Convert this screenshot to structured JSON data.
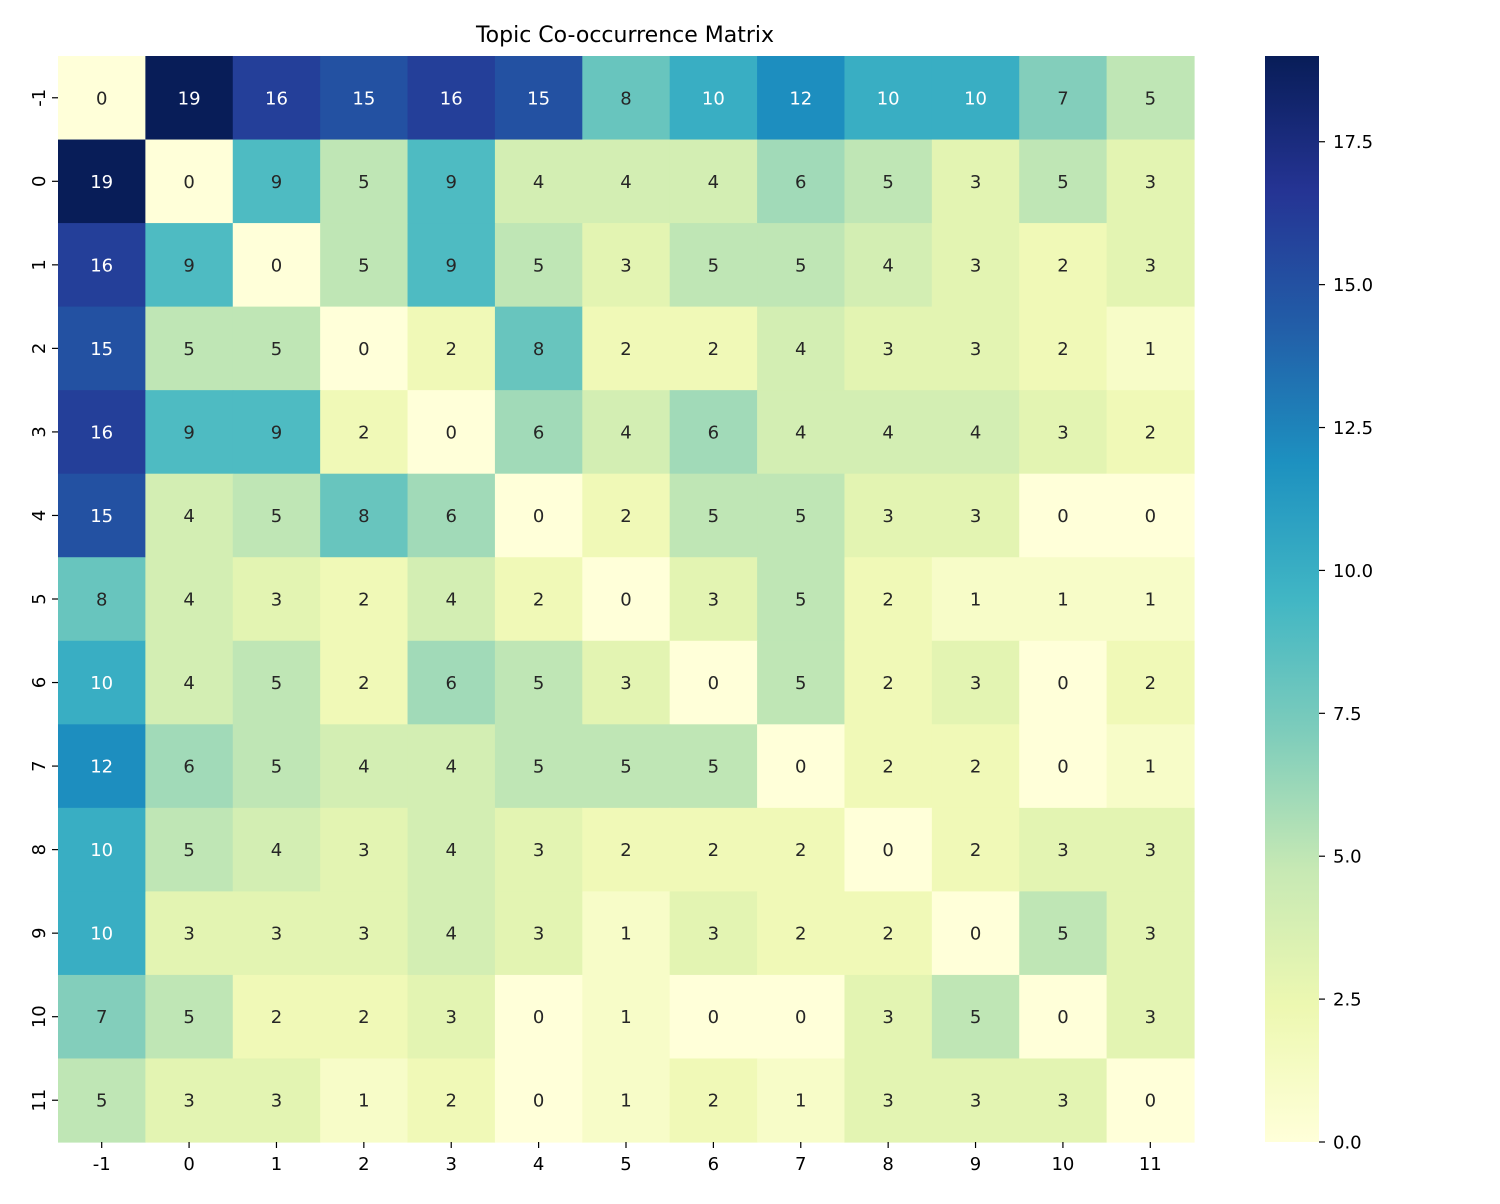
{
  "chart_data": {
    "type": "heatmap",
    "title": "Topic Co-occurrence Matrix",
    "xlabel": "",
    "ylabel": "",
    "x_categories": [
      "-1",
      "0",
      "1",
      "2",
      "3",
      "4",
      "5",
      "6",
      "7",
      "8",
      "9",
      "10",
      "11"
    ],
    "y_categories": [
      "-1",
      "0",
      "1",
      "2",
      "3",
      "4",
      "5",
      "6",
      "7",
      "8",
      "9",
      "10",
      "11"
    ],
    "values": [
      [
        0,
        19,
        16,
        15,
        16,
        15,
        8,
        10,
        12,
        10,
        10,
        7,
        5
      ],
      [
        19,
        0,
        9,
        5,
        9,
        4,
        4,
        4,
        6,
        5,
        3,
        5,
        3
      ],
      [
        16,
        9,
        0,
        5,
        9,
        5,
        3,
        5,
        5,
        4,
        3,
        2,
        3
      ],
      [
        15,
        5,
        5,
        0,
        2,
        8,
        2,
        2,
        4,
        3,
        3,
        2,
        1
      ],
      [
        16,
        9,
        9,
        2,
        0,
        6,
        4,
        6,
        4,
        4,
        4,
        3,
        2
      ],
      [
        15,
        4,
        5,
        8,
        6,
        0,
        2,
        5,
        5,
        3,
        3,
        0,
        0
      ],
      [
        8,
        4,
        3,
        2,
        4,
        2,
        0,
        3,
        5,
        2,
        1,
        1,
        1
      ],
      [
        10,
        4,
        5,
        2,
        6,
        5,
        3,
        0,
        5,
        2,
        3,
        0,
        2
      ],
      [
        12,
        6,
        5,
        4,
        4,
        5,
        5,
        5,
        0,
        2,
        2,
        0,
        1
      ],
      [
        10,
        5,
        4,
        3,
        4,
        3,
        2,
        2,
        2,
        0,
        2,
        3,
        3
      ],
      [
        10,
        3,
        3,
        3,
        4,
        3,
        1,
        3,
        2,
        2,
        0,
        5,
        3
      ],
      [
        7,
        5,
        2,
        2,
        3,
        0,
        1,
        0,
        0,
        3,
        5,
        0,
        3
      ],
      [
        5,
        3,
        3,
        1,
        2,
        0,
        1,
        2,
        1,
        3,
        3,
        3,
        0
      ]
    ],
    "colormap": "YlGnBu",
    "color_range": [
      0,
      19
    ],
    "colorbar_ticks": [
      0.0,
      2.5,
      5.0,
      7.5,
      10.0,
      12.5,
      15.0,
      17.5
    ],
    "colorbar_tick_labels": [
      "0.0",
      "2.5",
      "5.0",
      "7.5",
      "10.0",
      "12.5",
      "15.0",
      "17.5"
    ],
    "annotated": true,
    "grid": false
  }
}
